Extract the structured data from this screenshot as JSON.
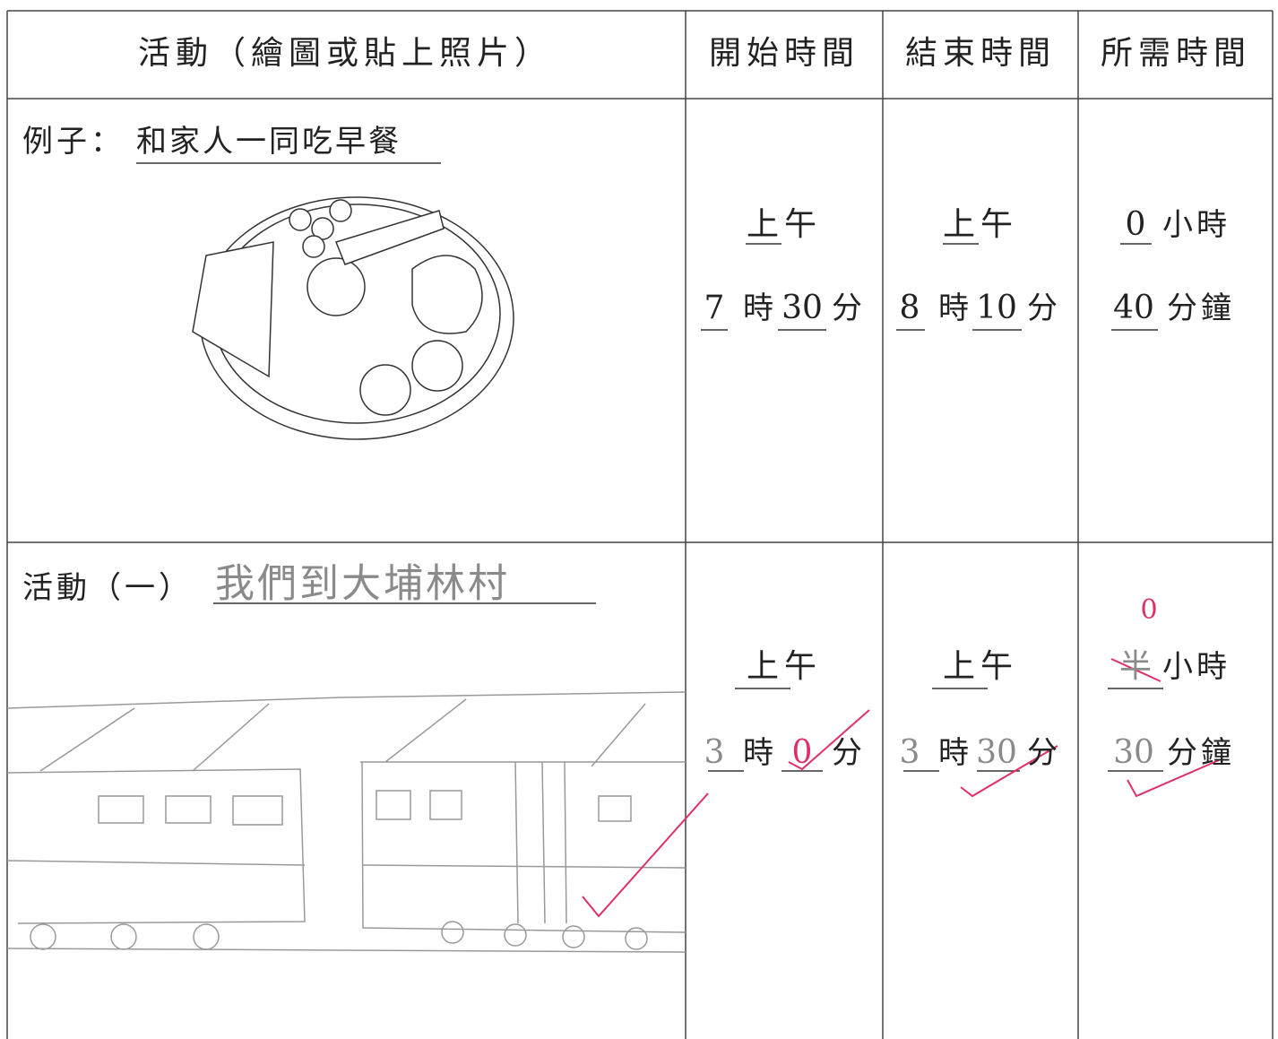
{
  "header": {
    "columns": [
      "活動（繪圖或貼上照片）",
      "開始時間",
      "結束時間",
      "所需時間"
    ]
  },
  "rows": [
    {
      "activity_label": "例子：",
      "activity": "和家人一同吃早餐",
      "start": {
        "period": "上午",
        "hour": "7",
        "hour_unit": "時",
        "minute": "30",
        "minute_unit": "分"
      },
      "end": {
        "period": "上午",
        "hour": "8",
        "hour_unit": "時",
        "minute": "10",
        "minute_unit": "分"
      },
      "duration": {
        "hours": "0",
        "hours_unit": "小時",
        "minutes": "40",
        "minutes_unit": "分鐘"
      }
    },
    {
      "activity_label": "活動（一）",
      "activity": "我們到大埔林村",
      "start": {
        "period": "上午",
        "hour": "3",
        "hour_unit": "時",
        "minute": "0",
        "minute_unit": "分"
      },
      "end": {
        "period": "上午",
        "hour": "3",
        "hour_unit": "時",
        "minute": "30",
        "minute_unit": "分"
      },
      "duration": {
        "hours_crossed": "半",
        "hours": "0",
        "hours_unit": "小時",
        "minutes": "30",
        "minutes_unit": "分鐘"
      }
    }
  ]
}
